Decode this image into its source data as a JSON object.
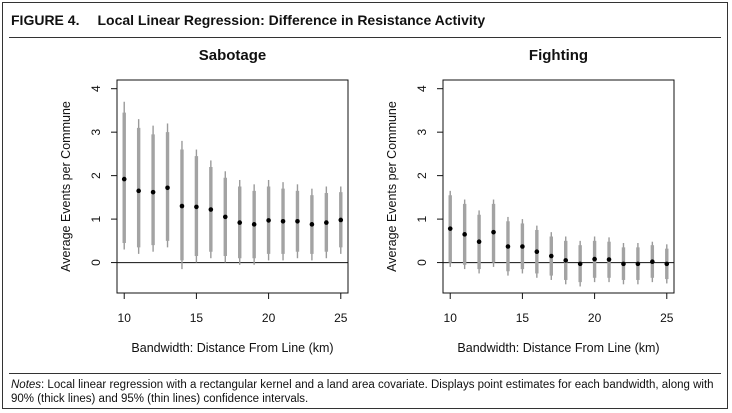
{
  "figure": {
    "label": "FIGURE 4.",
    "title": "Local Linear Regression: Difference in Resistance Activity"
  },
  "notes": {
    "lead": "Notes",
    "text": ": Local linear regression with a rectangular kernel and a land area covariate. Displays point estimates for each bandwidth, along with 90% (thick lines) and 95% (thin lines) confidence intervals."
  },
  "chart_data": [
    {
      "type": "scatter",
      "title": "Sabotage",
      "xlabel": "Bandwidth: Distance From Line (km)",
      "ylabel": "Average Events per Commune",
      "xlim": [
        9.5,
        25.5
      ],
      "ylim": [
        -0.7,
        4.2
      ],
      "xticks": [
        10,
        15,
        20,
        25
      ],
      "yticks": [
        0,
        1,
        2,
        3,
        4
      ],
      "reference_line": 0,
      "points": [
        {
          "x": 10,
          "estimate": 1.92,
          "ci90": [
            0.45,
            3.45
          ],
          "ci95": [
            0.3,
            3.7
          ]
        },
        {
          "x": 11,
          "estimate": 1.65,
          "ci90": [
            0.35,
            3.1
          ],
          "ci95": [
            0.2,
            3.3
          ]
        },
        {
          "x": 12,
          "estimate": 1.62,
          "ci90": [
            0.4,
            2.95
          ],
          "ci95": [
            0.25,
            3.15
          ]
        },
        {
          "x": 13,
          "estimate": 1.72,
          "ci90": [
            0.5,
            3.0
          ],
          "ci95": [
            0.35,
            3.2
          ]
        },
        {
          "x": 14,
          "estimate": 1.3,
          "ci90": [
            0.05,
            2.6
          ],
          "ci95": [
            -0.15,
            2.8
          ]
        },
        {
          "x": 15,
          "estimate": 1.28,
          "ci90": [
            0.15,
            2.45
          ],
          "ci95": [
            0.0,
            2.6
          ]
        },
        {
          "x": 16,
          "estimate": 1.22,
          "ci90": [
            0.25,
            2.2
          ],
          "ci95": [
            0.1,
            2.35
          ]
        },
        {
          "x": 17,
          "estimate": 1.05,
          "ci90": [
            0.15,
            1.95
          ],
          "ci95": [
            0.0,
            2.1
          ]
        },
        {
          "x": 18,
          "estimate": 0.92,
          "ci90": [
            0.1,
            1.75
          ],
          "ci95": [
            -0.05,
            1.9
          ]
        },
        {
          "x": 19,
          "estimate": 0.88,
          "ci90": [
            0.1,
            1.65
          ],
          "ci95": [
            -0.05,
            1.8
          ]
        },
        {
          "x": 20,
          "estimate": 0.97,
          "ci90": [
            0.2,
            1.75
          ],
          "ci95": [
            0.05,
            1.9
          ]
        },
        {
          "x": 21,
          "estimate": 0.95,
          "ci90": [
            0.2,
            1.7
          ],
          "ci95": [
            0.05,
            1.85
          ]
        },
        {
          "x": 22,
          "estimate": 0.95,
          "ci90": [
            0.25,
            1.65
          ],
          "ci95": [
            0.1,
            1.8
          ]
        },
        {
          "x": 23,
          "estimate": 0.88,
          "ci90": [
            0.2,
            1.55
          ],
          "ci95": [
            0.05,
            1.7
          ]
        },
        {
          "x": 24,
          "estimate": 0.92,
          "ci90": [
            0.25,
            1.6
          ],
          "ci95": [
            0.1,
            1.75
          ]
        },
        {
          "x": 25,
          "estimate": 0.98,
          "ci90": [
            0.35,
            1.62
          ],
          "ci95": [
            0.2,
            1.75
          ]
        }
      ]
    },
    {
      "type": "scatter",
      "title": "Fighting",
      "xlabel": "Bandwidth: Distance From Line (km)",
      "ylabel": "Average Events per Commune",
      "xlim": [
        9.5,
        25.5
      ],
      "ylim": [
        -0.7,
        4.2
      ],
      "xticks": [
        10,
        15,
        20,
        25
      ],
      "yticks": [
        0,
        1,
        2,
        3,
        4
      ],
      "reference_line": 0,
      "points": [
        {
          "x": 10,
          "estimate": 0.78,
          "ci90": [
            0.0,
            1.55
          ],
          "ci95": [
            -0.1,
            1.65
          ]
        },
        {
          "x": 11,
          "estimate": 0.65,
          "ci90": [
            -0.05,
            1.35
          ],
          "ci95": [
            -0.15,
            1.45
          ]
        },
        {
          "x": 12,
          "estimate": 0.48,
          "ci90": [
            -0.15,
            1.1
          ],
          "ci95": [
            -0.25,
            1.2
          ]
        },
        {
          "x": 13,
          "estimate": 0.7,
          "ci90": [
            0.0,
            1.35
          ],
          "ci95": [
            -0.1,
            1.45
          ]
        },
        {
          "x": 14,
          "estimate": 0.37,
          "ci90": [
            -0.2,
            0.95
          ],
          "ci95": [
            -0.3,
            1.05
          ]
        },
        {
          "x": 15,
          "estimate": 0.37,
          "ci90": [
            -0.15,
            0.9
          ],
          "ci95": [
            -0.25,
            1.0
          ]
        },
        {
          "x": 16,
          "estimate": 0.25,
          "ci90": [
            -0.25,
            0.75
          ],
          "ci95": [
            -0.35,
            0.85
          ]
        },
        {
          "x": 17,
          "estimate": 0.15,
          "ci90": [
            -0.3,
            0.6
          ],
          "ci95": [
            -0.4,
            0.7
          ]
        },
        {
          "x": 18,
          "estimate": 0.05,
          "ci90": [
            -0.4,
            0.5
          ],
          "ci95": [
            -0.5,
            0.6
          ]
        },
        {
          "x": 19,
          "estimate": -0.03,
          "ci90": [
            -0.45,
            0.4
          ],
          "ci95": [
            -0.55,
            0.5
          ]
        },
        {
          "x": 20,
          "estimate": 0.08,
          "ci90": [
            -0.35,
            0.5
          ],
          "ci95": [
            -0.45,
            0.6
          ]
        },
        {
          "x": 21,
          "estimate": 0.07,
          "ci90": [
            -0.35,
            0.48
          ],
          "ci95": [
            -0.45,
            0.58
          ]
        },
        {
          "x": 22,
          "estimate": -0.03,
          "ci90": [
            -0.4,
            0.35
          ],
          "ci95": [
            -0.5,
            0.45
          ]
        },
        {
          "x": 23,
          "estimate": -0.03,
          "ci90": [
            -0.4,
            0.35
          ],
          "ci95": [
            -0.5,
            0.45
          ]
        },
        {
          "x": 24,
          "estimate": 0.02,
          "ci90": [
            -0.35,
            0.4
          ],
          "ci95": [
            -0.45,
            0.48
          ]
        },
        {
          "x": 25,
          "estimate": -0.03,
          "ci90": [
            -0.38,
            0.32
          ],
          "ci95": [
            -0.48,
            0.42
          ]
        }
      ]
    }
  ]
}
